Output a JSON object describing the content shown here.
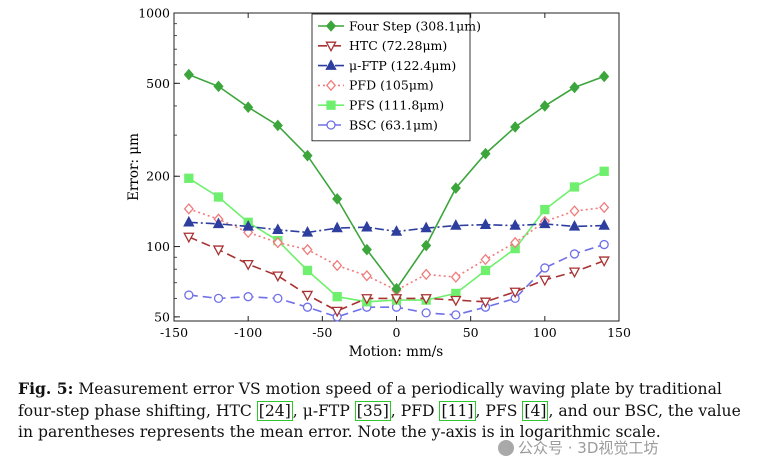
{
  "chart_data": {
    "type": "line",
    "yscale": "log",
    "xlabel": "Motion: mm/s",
    "ylabel": "Error: μm",
    "xlim": [
      -150,
      150
    ],
    "ylim": [
      48,
      1000
    ],
    "xticks": [
      -150,
      -100,
      -50,
      0,
      50,
      100,
      150
    ],
    "yticks": [
      50,
      100,
      200,
      500,
      1000
    ],
    "legend_position": "top-center",
    "x": [
      -140,
      -120,
      -100,
      -80,
      -60,
      -40,
      -20,
      0,
      20,
      40,
      60,
      80,
      100,
      120,
      140
    ],
    "series": [
      {
        "name": "Four Step (308.1μm)",
        "color": "#3ca63c",
        "dash": "",
        "marker": "diamond",
        "filled": true,
        "width": 1.6,
        "values": [
          545,
          485,
          395,
          330,
          245,
          160,
          97,
          66,
          101,
          178,
          250,
          325,
          400,
          480,
          535
        ]
      },
      {
        "name": "HTC (72.28μm)",
        "color": "#a83232",
        "dash": "9,5",
        "marker": "tri-down",
        "filled": false,
        "width": 1.6,
        "values": [
          110,
          97,
          84,
          75,
          62,
          53,
          60,
          60,
          60,
          59,
          58,
          64,
          72,
          78,
          87
        ]
      },
      {
        "name": "μ-FTP (122.4μm)",
        "color": "#2e3e9e",
        "dash": "9,3,2,3",
        "marker": "tri-up",
        "filled": true,
        "width": 1.6,
        "values": [
          127,
          125,
          122,
          118,
          115,
          120,
          121,
          116,
          120,
          123,
          124,
          123,
          125,
          122,
          123
        ]
      },
      {
        "name": "PFD (105μm)",
        "color": "#f07c7c",
        "dash": "2,3",
        "marker": "diamond",
        "filled": false,
        "width": 1.6,
        "values": [
          145,
          131,
          115,
          104,
          97,
          83,
          75,
          65,
          76,
          74,
          88,
          104,
          128,
          142,
          147
        ]
      },
      {
        "name": "PFS (111.8μm)",
        "color": "#6ef06e",
        "dash": "",
        "marker": "square",
        "filled": true,
        "width": 1.6,
        "values": [
          196,
          163,
          127,
          106,
          79,
          61,
          58,
          59,
          59,
          63,
          79,
          98,
          144,
          180,
          210
        ]
      },
      {
        "name": "BSC (63.1μm)",
        "color": "#7070e8",
        "dash": "9,5",
        "marker": "circle",
        "filled": false,
        "width": 1.6,
        "values": [
          62,
          60,
          61,
          60,
          55,
          50,
          55,
          55,
          52,
          51,
          55,
          60,
          81,
          93,
          102
        ]
      }
    ]
  },
  "caption": {
    "label": "Fig. 5:",
    "t1": " Measurement error VS motion speed of a periodically waving plate by traditional four-step phase shifting, HTC ",
    "ref1": "[24]",
    "t2": ", μ-FTP ",
    "ref2": "[35]",
    "t3": ", PFD ",
    "ref3": "[11]",
    "t4": ", PFS ",
    "ref4": "[4]",
    "t5": ", and our BSC, the value in parentheses represents the mean error. Note the y-axis is in logarithmic scale."
  },
  "watermark": "公众号 · 3D视觉工坊"
}
